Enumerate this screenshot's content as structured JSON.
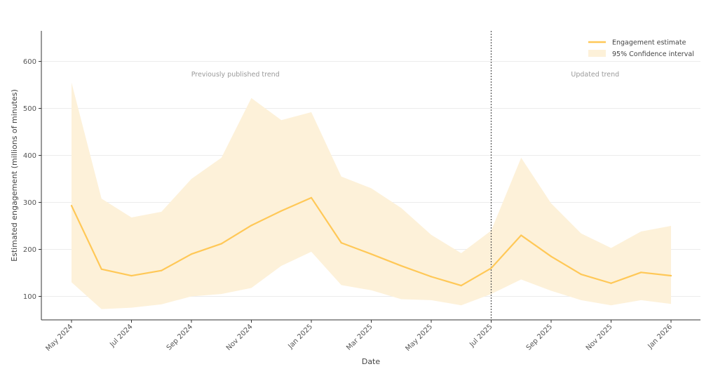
{
  "chart_data": {
    "type": "line",
    "xlabel": "Date",
    "ylabel": "Estimated engagement (millions of minutes)",
    "ylim": [
      50,
      665
    ],
    "y_ticks": [
      100,
      200,
      300,
      400,
      500,
      600
    ],
    "grid": "horizontal",
    "legend_position": "top-right",
    "x_tick_labels": [
      "May 2024",
      "Jul 2024",
      "Sep 2024",
      "Nov 2024",
      "Jan 2025",
      "Mar 2025",
      "May 2025",
      "Jul 2025",
      "Sep 2025",
      "Nov 2025",
      "Jan 2026"
    ],
    "x": [
      "May 2024",
      "Jun 2024",
      "Jul 2024",
      "Aug 2024",
      "Sep 2024",
      "Oct 2024",
      "Nov 2024",
      "Dec 2024",
      "Jan 2025",
      "Feb 2025",
      "Mar 2025",
      "Apr 2025",
      "May 2025",
      "Jun 2025",
      "Jul 2025",
      "Aug 2025",
      "Sep 2025",
      "Oct 2025",
      "Nov 2025",
      "Dec 2025",
      "Jan 2026"
    ],
    "series": [
      {
        "name": "Engagement estimate",
        "color": "#ffc857",
        "values": [
          293,
          158,
          144,
          155,
          190,
          212,
          251,
          282,
          310,
          214,
          190,
          165,
          142,
          123,
          160,
          230,
          185,
          147,
          128,
          151,
          144
        ]
      }
    ],
    "confidence_band": {
      "name": "95% Confidence interval",
      "color": "#fdf1d9",
      "lower": [
        130,
        73,
        76,
        83,
        100,
        105,
        118,
        165,
        195,
        124,
        113,
        94,
        92,
        81,
        105,
        136,
        112,
        92,
        81,
        92,
        84
      ],
      "upper": [
        555,
        308,
        268,
        280,
        350,
        395,
        522,
        475,
        492,
        355,
        330,
        288,
        231,
        192,
        240,
        395,
        298,
        234,
        203,
        238,
        250
      ]
    },
    "divider": {
      "x": "Jul 2025",
      "style": "dotted"
    },
    "annotations": [
      {
        "text": "Previously published trend",
        "x": "Oct 2024",
        "y": 568
      },
      {
        "text": "Updated trend",
        "x": "Oct 2025",
        "y": 568
      }
    ]
  }
}
